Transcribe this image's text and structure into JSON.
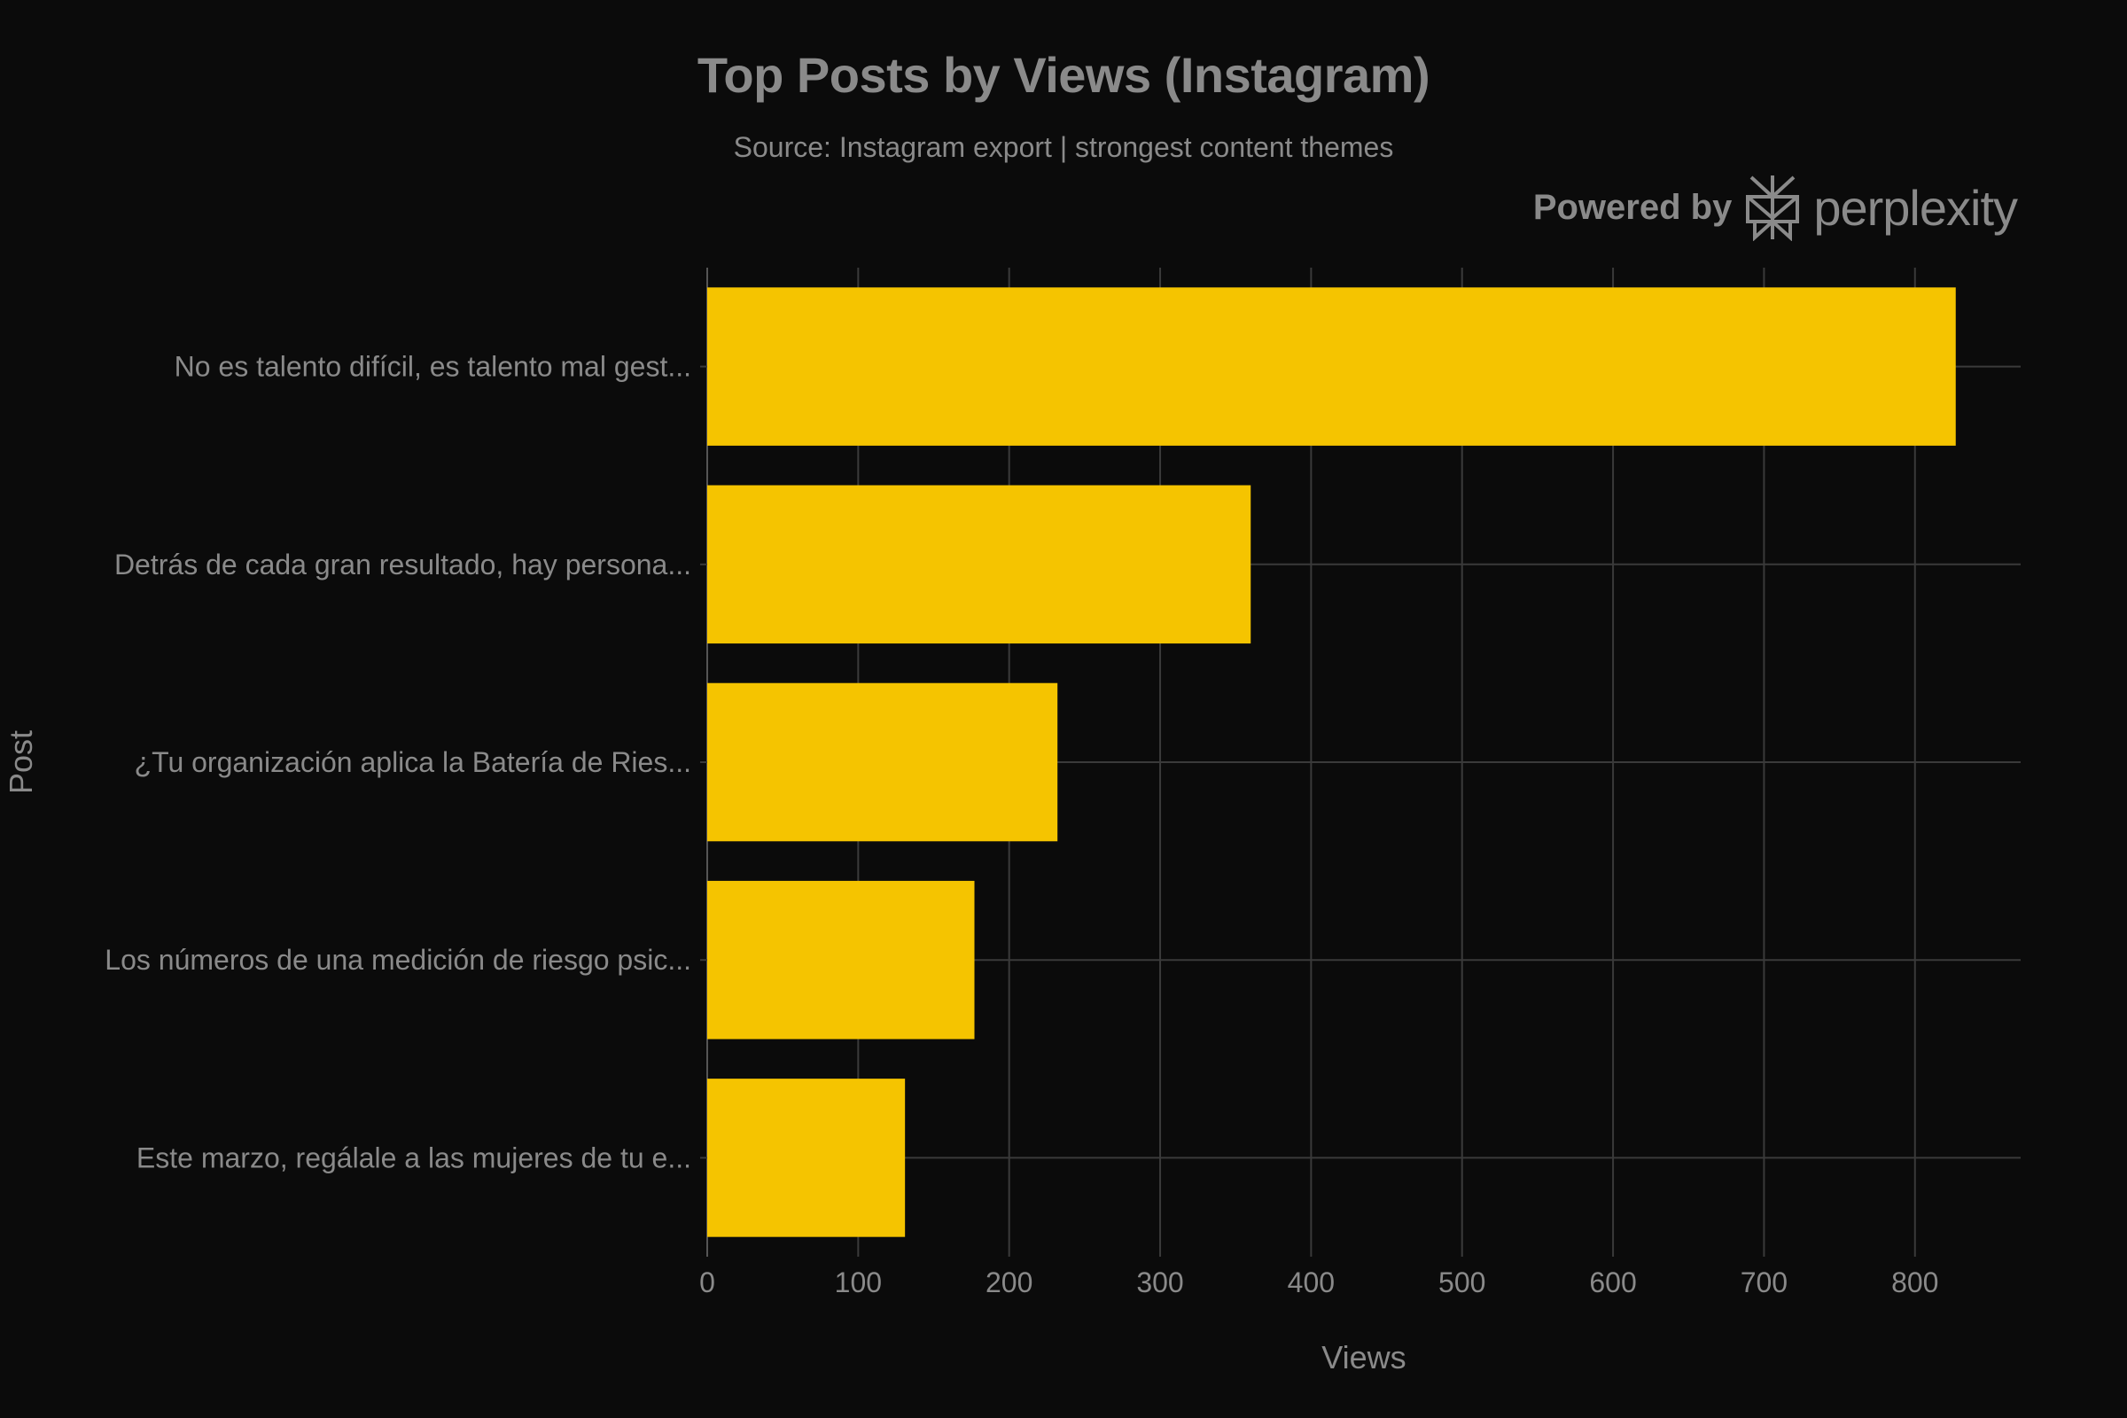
{
  "header": {
    "title": "Top Posts by Views (Instagram)",
    "subtitle": "Source: Instagram export | strongest content themes"
  },
  "branding": {
    "powered_label": "Powered by",
    "brand_name": "perplexity",
    "logo_icon": "perplexity-logo-icon"
  },
  "colors": {
    "background": "#0b0b0b",
    "bar": "#f5c400",
    "grid": "#3a3a3a",
    "text": "#8a8a8a"
  },
  "chart_data": {
    "type": "bar",
    "orientation": "horizontal",
    "title": "Top Posts by Views (Instagram)",
    "subtitle": "Source: Instagram export | strongest content themes",
    "xlabel": "Views",
    "ylabel": "Post",
    "xlim": [
      0,
      870
    ],
    "xticks": [
      0,
      100,
      200,
      300,
      400,
      500,
      600,
      700,
      800
    ],
    "grid": true,
    "categories": [
      "No es talento difícil, es talento mal gest...",
      "Detrás de cada gran resultado, hay persona...",
      "¿Tu organización aplica la Batería de Ries...",
      "Los números de una medición de riesgo psic...",
      "Este marzo, regálale a las mujeres de tu e..."
    ],
    "values": [
      827,
      360,
      232,
      177,
      131
    ]
  }
}
